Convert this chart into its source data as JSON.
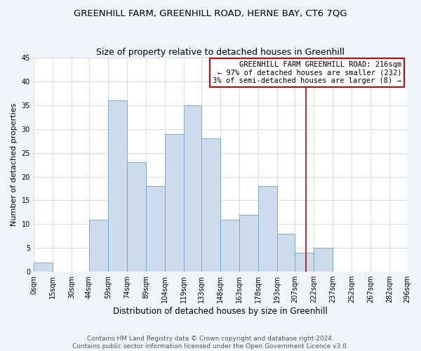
{
  "title": "GREENHILL FARM, GREENHILL ROAD, HERNE BAY, CT6 7QG",
  "subtitle": "Size of property relative to detached houses in Greenhill",
  "xlabel": "Distribution of detached houses by size in Greenhill",
  "ylabel": "Number of detached properties",
  "bar_color": "#ccdcec",
  "bar_edge_color": "#7aaac8",
  "bin_edges": [
    0,
    15,
    30,
    44,
    59,
    74,
    89,
    104,
    119,
    133,
    148,
    163,
    178,
    193,
    207,
    222,
    237,
    252,
    267,
    282,
    296
  ],
  "bar_heights": [
    2,
    0,
    0,
    11,
    36,
    23,
    18,
    29,
    35,
    28,
    11,
    12,
    18,
    8,
    4,
    5,
    0,
    0,
    0,
    0
  ],
  "tick_labels": [
    "0sqm",
    "15sqm",
    "30sqm",
    "44sqm",
    "59sqm",
    "74sqm",
    "89sqm",
    "104sqm",
    "119sqm",
    "133sqm",
    "148sqm",
    "163sqm",
    "178sqm",
    "193sqm",
    "207sqm",
    "222sqm",
    "237sqm",
    "252sqm",
    "267sqm",
    "282sqm",
    "296sqm"
  ],
  "ylim": [
    0,
    45
  ],
  "yticks": [
    0,
    5,
    10,
    15,
    20,
    25,
    30,
    35,
    40,
    45
  ],
  "vline_x": 216,
  "vline_color": "#cc0000",
  "annotation_line1": "GREENHILL FARM GREENHILL ROAD: 216sqm",
  "annotation_line2": "← 97% of detached houses are smaller (232)",
  "annotation_line3": "3% of semi-detached houses are larger (8) →",
  "box_color": "#ffffff",
  "box_edge_color": "#cc0000",
  "plot_bg_color": "#ffffff",
  "fig_bg_color": "#f0f4f8",
  "footer_text": "Contains HM Land Registry data © Crown copyright and database right 2024.\nContains public sector information licensed under the Open Government Licence v3.0.",
  "title_fontsize": 9.5,
  "subtitle_fontsize": 9,
  "xlabel_fontsize": 8.5,
  "ylabel_fontsize": 8,
  "tick_fontsize": 7,
  "annotation_fontsize": 7.5,
  "footer_fontsize": 6.5
}
